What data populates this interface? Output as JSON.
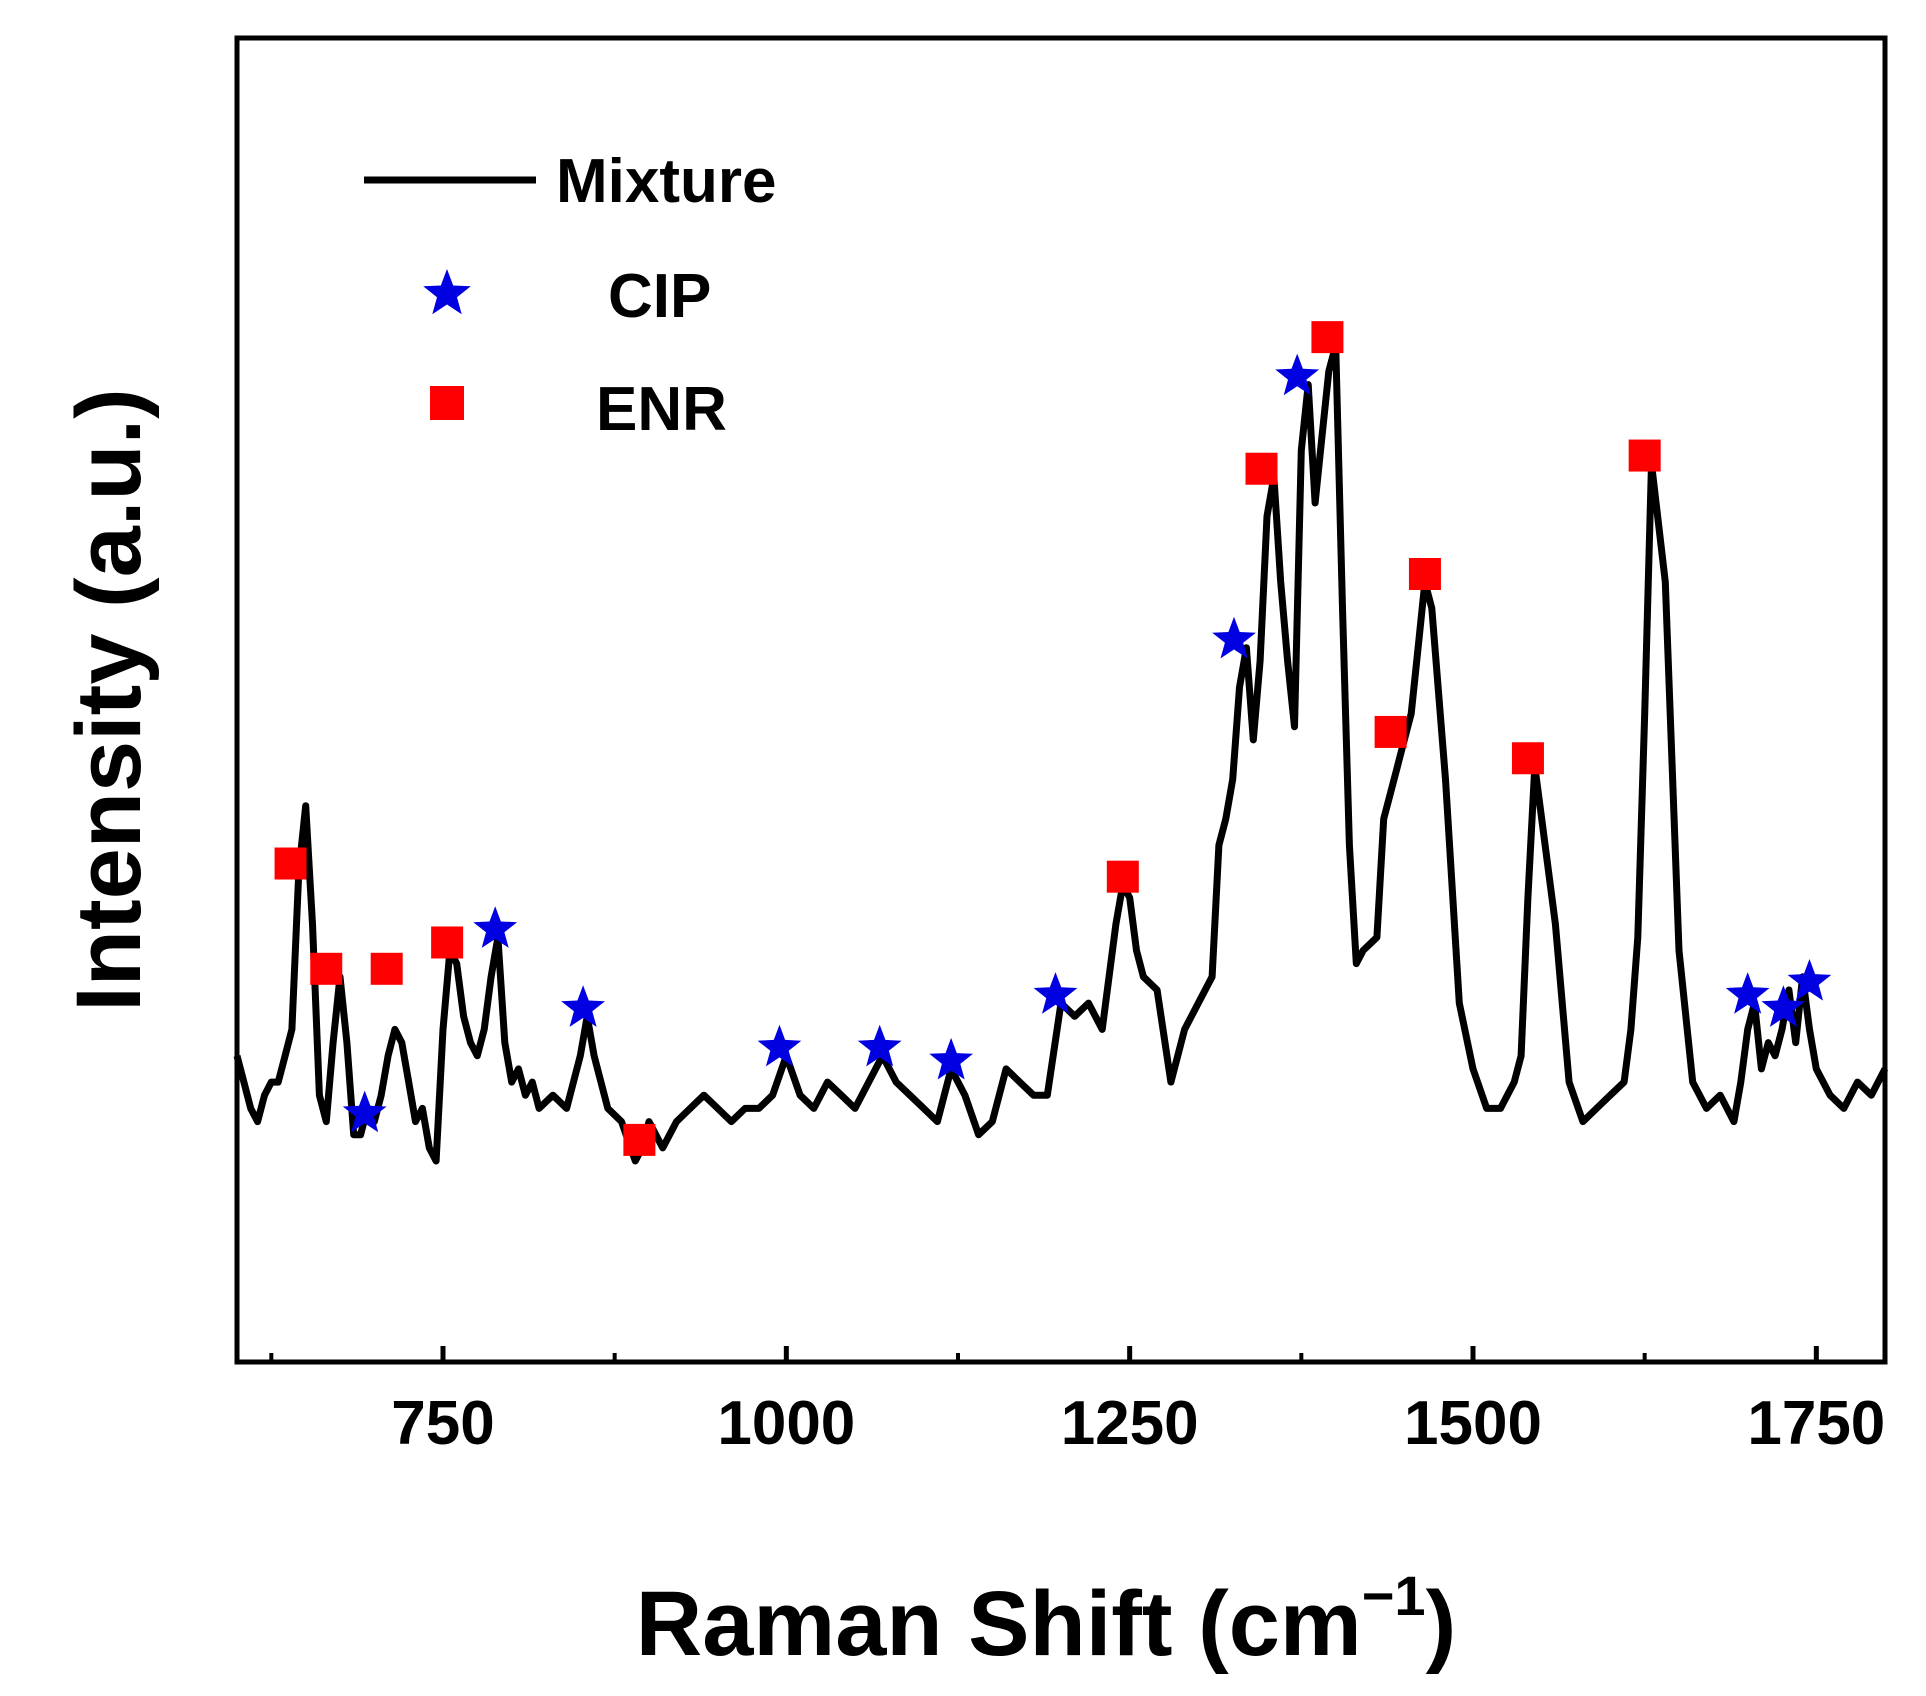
{
  "chart_data": {
    "type": "line",
    "xlabel": "Raman Shift (cm",
    "xlabel_sup": "−1",
    "xlabel_close": ")",
    "ylabel": "Intensity (a.u.)",
    "xlim": [
      600,
      1800
    ],
    "ylim": [
      0,
      100
    ],
    "xticks": [
      750,
      1000,
      1250,
      1500,
      1750
    ],
    "xtick_labels": [
      "750",
      "1000",
      "1250",
      "1500",
      "1750"
    ],
    "legend": {
      "placement": "top-left",
      "entries": [
        {
          "label": "Mixture",
          "marker": "line"
        },
        {
          "label": "CIP",
          "marker": "star"
        },
        {
          "label": "ENR",
          "marker": "square"
        }
      ]
    },
    "colors": {
      "line": "#000000",
      "cip": "#0000e0",
      "enr": "#ff0000"
    },
    "series": [
      {
        "name": "Mixture",
        "x": [
          600,
          605,
          610,
          615,
          620,
          625,
          630,
          635,
          640,
          645,
          650,
          655,
          660,
          665,
          670,
          675,
          680,
          685,
          690,
          695,
          700,
          705,
          710,
          715,
          720,
          725,
          730,
          735,
          740,
          745,
          750,
          755,
          760,
          765,
          770,
          775,
          780,
          785,
          790,
          795,
          800,
          805,
          810,
          815,
          820,
          830,
          840,
          850,
          855,
          860,
          870,
          880,
          890,
          895,
          900,
          910,
          920,
          930,
          940,
          950,
          960,
          970,
          980,
          990,
          1000,
          1010,
          1020,
          1030,
          1040,
          1050,
          1060,
          1070,
          1080,
          1090,
          1100,
          1110,
          1120,
          1130,
          1140,
          1150,
          1160,
          1170,
          1180,
          1190,
          1200,
          1210,
          1220,
          1230,
          1240,
          1245,
          1250,
          1255,
          1260,
          1270,
          1280,
          1290,
          1300,
          1310,
          1315,
          1320,
          1325,
          1330,
          1335,
          1340,
          1345,
          1350,
          1355,
          1360,
          1365,
          1370,
          1375,
          1380,
          1385,
          1390,
          1395,
          1400,
          1405,
          1410,
          1415,
          1420,
          1430,
          1435,
          1440,
          1445,
          1450,
          1455,
          1460,
          1465,
          1470,
          1480,
          1490,
          1500,
          1510,
          1520,
          1530,
          1535,
          1540,
          1545,
          1550,
          1560,
          1570,
          1580,
          1590,
          1600,
          1610,
          1615,
          1620,
          1625,
          1630,
          1640,
          1650,
          1660,
          1670,
          1680,
          1690,
          1695,
          1700,
          1705,
          1710,
          1715,
          1720,
          1725,
          1730,
          1735,
          1740,
          1745,
          1750,
          1760,
          1770,
          1780,
          1790,
          1800
        ],
        "y": [
          14,
          12,
          10,
          9,
          11,
          12,
          12,
          14,
          16,
          28,
          33,
          24,
          11,
          9,
          15,
          20,
          15,
          8,
          8,
          10,
          9,
          11,
          14,
          16,
          15,
          12,
          9,
          10,
          7,
          6,
          16,
          22,
          21,
          17,
          15,
          14,
          16,
          20,
          23,
          15,
          12,
          13,
          11,
          12,
          10,
          11,
          10,
          14,
          17,
          14,
          10,
          9,
          6,
          7,
          9,
          7,
          9,
          10,
          11,
          10,
          9,
          10,
          10,
          11,
          14,
          11,
          10,
          12,
          11,
          10,
          12,
          14,
          12,
          11,
          10,
          9,
          13,
          11,
          8,
          9,
          13,
          12,
          11,
          11,
          18,
          17,
          18,
          16,
          24,
          27,
          26,
          22,
          20,
          19,
          12,
          16,
          18,
          20,
          30,
          32,
          35,
          42,
          45,
          38,
          44,
          55,
          58,
          50,
          44,
          39,
          60,
          65,
          56,
          61,
          66,
          68,
          48,
          30,
          21,
          22,
          23,
          32,
          34,
          36,
          38,
          40,
          45,
          50,
          48,
          35,
          18,
          13,
          10,
          10,
          12,
          14,
          26,
          36,
          32,
          24,
          12,
          9,
          10,
          11,
          12,
          16,
          23,
          40,
          59,
          50,
          22,
          12,
          10,
          11,
          9,
          12,
          16,
          18,
          13,
          15,
          14,
          16,
          19,
          15,
          20,
          16,
          13,
          11,
          10,
          12,
          11,
          13
        ],
        "cip_peaks": [
          {
            "x": 693,
            "y": 9
          },
          {
            "x": 788,
            "y": 23
          },
          {
            "x": 852,
            "y": 17
          },
          {
            "x": 995,
            "y": 14
          },
          {
            "x": 1068,
            "y": 14
          },
          {
            "x": 1120,
            "y": 13
          },
          {
            "x": 1196,
            "y": 18
          },
          {
            "x": 1326,
            "y": 45
          },
          {
            "x": 1372,
            "y": 65
          }
        ],
        "enr_peaks": [
          {
            "x": 639,
            "y": 28
          },
          {
            "x": 665,
            "y": 20
          },
          {
            "x": 709,
            "y": 20
          },
          {
            "x": 753,
            "y": 22
          },
          {
            "x": 893,
            "y": 7
          },
          {
            "x": 1245,
            "y": 27
          },
          {
            "x": 1346,
            "y": 58
          },
          {
            "x": 1394,
            "y": 68
          },
          {
            "x": 1440,
            "y": 38
          },
          {
            "x": 1465,
            "y": 50
          },
          {
            "x": 1540,
            "y": 36
          },
          {
            "x": 1625,
            "y": 59
          }
        ],
        "legend_extra_peaks": [
          {
            "x": 1700,
            "y": 18,
            "kind": "cip"
          },
          {
            "x": 1726,
            "y": 17,
            "kind": "cip"
          },
          {
            "x": 1745,
            "y": 19,
            "kind": "cip"
          }
        ]
      }
    ]
  }
}
